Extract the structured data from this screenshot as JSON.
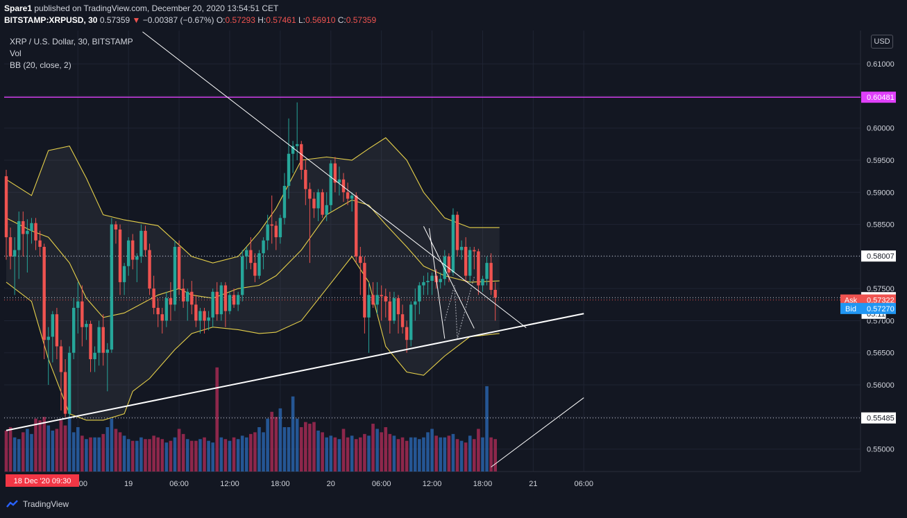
{
  "header": {
    "publisher": "Spare1",
    "published_text": " published on TradingView.com, December 20, 2020 13:54:51 CET",
    "symbol": "BITSTAMP:XRPUSD",
    "interval": ", 30 ",
    "last": "0.57359",
    "arrow": "▼",
    "change": " −0.00387 (−0.67%)",
    "o_label": " O:",
    "o": "0.57293",
    "h_label": " H:",
    "h": "0.57461",
    "l_label": " L:",
    "l": "0.56910",
    "c_label": " C:",
    "c": "0.57359"
  },
  "legend": {
    "title": "XRP / U.S. Dollar, 30, BITSTAMP",
    "vol": "Vol",
    "bb": "BB (20, close, 2)"
  },
  "currency_button": "USD",
  "footer": {
    "brand": "TradingView"
  },
  "colors": {
    "background": "#131722",
    "up": "#26a69a",
    "down": "#ef5350",
    "vol_up": "#2962a8",
    "vol_down": "#a32a52",
    "bb": "#e6d04a",
    "resistance": "#e040fb",
    "trend": "#ffffff",
    "ask": "#ef5350",
    "bid": "#2196f3"
  },
  "chart_data": {
    "type": "candlestick",
    "symbol": "XRPUSD",
    "interval_minutes": 30,
    "ylim": [
      0.5465,
      0.6152
    ],
    "y_ticks": [
      "0.61000",
      "0.60500",
      "0.60000",
      "0.59500",
      "0.59000",
      "0.58500",
      "0.58000",
      "0.57500",
      "0.57000",
      "0.56500",
      "0.56000",
      "0.55500",
      "0.55000"
    ],
    "y_tick_values": [
      0.61,
      0.605,
      0.6,
      0.595,
      0.59,
      0.585,
      0.58,
      0.575,
      0.57,
      0.565,
      0.56,
      0.555,
      0.55
    ],
    "x_ticks": [
      "18:00",
      "19",
      "06:00",
      "12:00",
      "18:00",
      "20",
      "06:00",
      "12:00",
      "18:00",
      "21",
      "06:00"
    ],
    "x_tick_times": [
      "2020-12-18 18:00",
      "2020-12-19 00:00",
      "2020-12-19 06:00",
      "2020-12-19 12:00",
      "2020-12-19 18:00",
      "2020-12-20 00:00",
      "2020-12-20 06:00",
      "2020-12-20 12:00",
      "2020-12-20 18:00",
      "2020-12-21 00:00",
      "2020-12-21 06:00"
    ],
    "first_bar_time": "2020-12-18 09:30",
    "time_cursor_label": "18 Dec '20   09:30",
    "grid": true,
    "price_labels": [
      {
        "text": "0.60481",
        "value": 0.60481,
        "bg": "#e040fb",
        "fg": "#ffffff"
      },
      {
        "text": "0.58007",
        "value": 0.58007,
        "bg": "#ffffff",
        "fg": "#131722"
      },
      {
        "text": "0.57359",
        "value": 0.57359,
        "bg": "#ffffff",
        "fg": "#131722"
      },
      {
        "text": "05:11",
        "value": 0.5711,
        "bg": "#ffffff",
        "fg": "#131722"
      },
      {
        "text": "0.55485",
        "value": 0.55485,
        "bg": "#ffffff",
        "fg": "#131722"
      }
    ],
    "ask": {
      "label": "Ask",
      "value": 0.57322,
      "text": "0.57322"
    },
    "bid": {
      "label": "Bid",
      "value": 0.5727,
      "text": "0.57270"
    },
    "ohlc": [
      [
        0.5925,
        0.5935,
        0.5795,
        0.583
      ],
      [
        0.583,
        0.5845,
        0.578,
        0.58
      ],
      [
        0.58,
        0.583,
        0.574,
        0.581
      ],
      [
        0.581,
        0.587,
        0.5765,
        0.5855
      ],
      [
        0.5855,
        0.587,
        0.58,
        0.5835
      ],
      [
        0.5835,
        0.5858,
        0.5775,
        0.584
      ],
      [
        0.584,
        0.586,
        0.582,
        0.5852
      ],
      [
        0.5852,
        0.586,
        0.581,
        0.5825
      ],
      [
        0.5825,
        0.584,
        0.58,
        0.5815
      ],
      [
        0.5815,
        0.582,
        0.564,
        0.567
      ],
      [
        0.567,
        0.569,
        0.56,
        0.5675
      ],
      [
        0.5675,
        0.5715,
        0.5635,
        0.571
      ],
      [
        0.571,
        0.572,
        0.564,
        0.566
      ],
      [
        0.566,
        0.567,
        0.556,
        0.562
      ],
      [
        0.562,
        0.564,
        0.555,
        0.5555
      ],
      [
        0.5555,
        0.566,
        0.5548,
        0.565
      ],
      [
        0.565,
        0.5735,
        0.564,
        0.572
      ],
      [
        0.572,
        0.576,
        0.568,
        0.573
      ],
      [
        0.573,
        0.5755,
        0.566,
        0.569
      ],
      [
        0.569,
        0.57,
        0.567,
        0.5695
      ],
      [
        0.5695,
        0.57,
        0.562,
        0.564
      ],
      [
        0.564,
        0.566,
        0.562,
        0.565
      ],
      [
        0.565,
        0.57,
        0.563,
        0.569
      ],
      [
        0.569,
        0.571,
        0.563,
        0.565
      ],
      [
        0.565,
        0.5665,
        0.559,
        0.5655
      ],
      [
        0.5655,
        0.586,
        0.565,
        0.585
      ],
      [
        0.585,
        0.5855,
        0.582,
        0.5842
      ],
      [
        0.5842,
        0.585,
        0.574,
        0.576
      ],
      [
        0.576,
        0.579,
        0.574,
        0.5785
      ],
      [
        0.5785,
        0.583,
        0.577,
        0.5825
      ],
      [
        0.5825,
        0.5835,
        0.578,
        0.5795
      ],
      [
        0.5795,
        0.5805,
        0.576,
        0.58
      ],
      [
        0.58,
        0.585,
        0.579,
        0.584
      ],
      [
        0.584,
        0.5848,
        0.58,
        0.581
      ],
      [
        0.581,
        0.582,
        0.574,
        0.575
      ],
      [
        0.575,
        0.577,
        0.571,
        0.572
      ],
      [
        0.572,
        0.5735,
        0.569,
        0.571
      ],
      [
        0.571,
        0.572,
        0.568,
        0.57
      ],
      [
        0.57,
        0.5745,
        0.569,
        0.5735
      ],
      [
        0.5735,
        0.576,
        0.57,
        0.5725
      ],
      [
        0.5725,
        0.5825,
        0.5715,
        0.5815
      ],
      [
        0.5815,
        0.5825,
        0.574,
        0.575
      ],
      [
        0.575,
        0.5765,
        0.572,
        0.573
      ],
      [
        0.573,
        0.575,
        0.57,
        0.5745
      ],
      [
        0.5745,
        0.5762,
        0.571,
        0.5725
      ],
      [
        0.5725,
        0.574,
        0.569,
        0.57
      ],
      [
        0.57,
        0.572,
        0.568,
        0.5715
      ],
      [
        0.5715,
        0.572,
        0.568,
        0.57
      ],
      [
        0.57,
        0.5715,
        0.5685,
        0.5705
      ],
      [
        0.5705,
        0.575,
        0.569,
        0.5745
      ],
      [
        0.5745,
        0.576,
        0.57,
        0.571
      ],
      [
        0.571,
        0.576,
        0.57,
        0.5755
      ],
      [
        0.5755,
        0.576,
        0.569,
        0.5715
      ],
      [
        0.5715,
        0.5745,
        0.571,
        0.574
      ],
      [
        0.574,
        0.575,
        0.572,
        0.5725
      ],
      [
        0.5725,
        0.5745,
        0.5715,
        0.574
      ],
      [
        0.574,
        0.581,
        0.573,
        0.58
      ],
      [
        0.58,
        0.5815,
        0.578,
        0.581
      ],
      [
        0.581,
        0.583,
        0.578,
        0.579
      ],
      [
        0.579,
        0.5805,
        0.576,
        0.577
      ],
      [
        0.577,
        0.581,
        0.5765,
        0.5805
      ],
      [
        0.5805,
        0.583,
        0.578,
        0.5825
      ],
      [
        0.5825,
        0.5865,
        0.581,
        0.585
      ],
      [
        0.585,
        0.5895,
        0.582,
        0.5848
      ],
      [
        0.5848,
        0.5855,
        0.581,
        0.583
      ],
      [
        0.583,
        0.5865,
        0.582,
        0.586
      ],
      [
        0.586,
        0.593,
        0.585,
        0.591
      ],
      [
        0.591,
        0.6015,
        0.589,
        0.596
      ],
      [
        0.596,
        0.598,
        0.593,
        0.5972
      ],
      [
        0.5972,
        0.604,
        0.595,
        0.5975
      ],
      [
        0.5975,
        0.598,
        0.592,
        0.5935
      ],
      [
        0.5935,
        0.595,
        0.588,
        0.5905
      ],
      [
        0.5905,
        0.5915,
        0.579,
        0.589
      ],
      [
        0.589,
        0.59,
        0.586,
        0.5875
      ],
      [
        0.5875,
        0.5905,
        0.5855,
        0.59
      ],
      [
        0.59,
        0.5905,
        0.586,
        0.5865
      ],
      [
        0.5865,
        0.59,
        0.5855,
        0.588
      ],
      [
        0.588,
        0.595,
        0.587,
        0.5945
      ],
      [
        0.5945,
        0.5955,
        0.59,
        0.5915
      ],
      [
        0.5915,
        0.594,
        0.5895,
        0.592
      ],
      [
        0.592,
        0.593,
        0.5885,
        0.59
      ],
      [
        0.59,
        0.5915,
        0.588,
        0.589
      ],
      [
        0.589,
        0.59,
        0.587,
        0.5895
      ],
      [
        0.5895,
        0.59,
        0.579,
        0.58
      ],
      [
        0.58,
        0.5815,
        0.574,
        0.579
      ],
      [
        0.579,
        0.58,
        0.568,
        0.5705
      ],
      [
        0.5705,
        0.576,
        0.565,
        0.574
      ],
      [
        0.574,
        0.576,
        0.572,
        0.5725
      ],
      [
        0.5725,
        0.576,
        0.571,
        0.574
      ],
      [
        0.574,
        0.5755,
        0.57,
        0.5738
      ],
      [
        0.5738,
        0.575,
        0.5705,
        0.573
      ],
      [
        0.573,
        0.5745,
        0.568,
        0.57
      ],
      [
        0.57,
        0.5745,
        0.5695,
        0.5735
      ],
      [
        0.5735,
        0.574,
        0.568,
        0.571
      ],
      [
        0.571,
        0.5725,
        0.568,
        0.569
      ],
      [
        0.569,
        0.57,
        0.565,
        0.567
      ],
      [
        0.567,
        0.573,
        0.566,
        0.5725
      ],
      [
        0.5725,
        0.575,
        0.57,
        0.573
      ],
      [
        0.573,
        0.576,
        0.571,
        0.5755
      ],
      [
        0.5755,
        0.577,
        0.574,
        0.576
      ],
      [
        0.576,
        0.5775,
        0.574,
        0.5762
      ],
      [
        0.5762,
        0.5775,
        0.574,
        0.577
      ],
      [
        0.577,
        0.578,
        0.575,
        0.576
      ],
      [
        0.576,
        0.5775,
        0.575,
        0.5765
      ],
      [
        0.5765,
        0.581,
        0.5755,
        0.58
      ],
      [
        0.58,
        0.5805,
        0.576,
        0.5775
      ],
      [
        0.5775,
        0.5875,
        0.577,
        0.5865
      ],
      [
        0.5865,
        0.587,
        0.58,
        0.581
      ],
      [
        0.581,
        0.5825,
        0.5795,
        0.5815
      ],
      [
        0.5815,
        0.583,
        0.576,
        0.577
      ],
      [
        0.577,
        0.5815,
        0.576,
        0.581
      ],
      [
        0.581,
        0.5815,
        0.578,
        0.5808
      ],
      [
        0.5808,
        0.5812,
        0.574,
        0.5755
      ],
      [
        0.5755,
        0.577,
        0.5745,
        0.5765
      ],
      [
        0.5765,
        0.58,
        0.5755,
        0.579
      ],
      [
        0.579,
        0.5805,
        0.574,
        0.5748
      ],
      [
        0.5748,
        0.576,
        0.57,
        0.5736
      ]
    ],
    "volume": [
      48,
      52,
      40,
      38,
      46,
      50,
      44,
      62,
      60,
      64,
      54,
      48,
      50,
      60,
      54,
      64,
      46,
      52,
      42,
      38,
      40,
      40,
      40,
      44,
      52,
      62,
      50,
      46,
      42,
      38,
      36,
      36,
      40,
      38,
      38,
      42,
      40,
      38,
      34,
      36,
      40,
      50,
      44,
      38,
      36,
      36,
      38,
      40,
      36,
      34,
      122,
      40,
      38,
      36,
      40,
      38,
      42,
      40,
      44,
      46,
      52,
      46,
      62,
      70,
      64,
      74,
      52,
      52,
      88,
      62,
      52,
      58,
      56,
      58,
      48,
      46,
      40,
      42,
      40,
      38,
      50,
      40,
      42,
      38,
      40,
      44,
      42,
      56,
      50,
      46,
      52,
      44,
      42,
      38,
      40,
      36,
      40,
      40,
      38,
      40,
      46,
      50,
      42,
      40,
      40,
      42,
      44,
      38,
      36,
      34,
      42,
      38,
      50,
      40,
      100,
      40,
      38,
      40,
      42,
      38,
      40
    ],
    "bollinger": {
      "period": 20,
      "source": "close",
      "stddev": 2,
      "upper": [
        [
          0,
          0.592
        ],
        [
          6,
          0.5895
        ],
        [
          10,
          0.5965
        ],
        [
          15,
          0.5972
        ],
        [
          19,
          0.5922
        ],
        [
          23,
          0.5865
        ],
        [
          28,
          0.5857
        ],
        [
          36,
          0.5848
        ],
        [
          41,
          0.5818
        ],
        [
          44,
          0.58
        ],
        [
          49,
          0.579
        ],
        [
          55,
          0.58
        ],
        [
          60,
          0.5838
        ],
        [
          64,
          0.5875
        ],
        [
          70,
          0.595
        ],
        [
          76,
          0.5955
        ],
        [
          82,
          0.595
        ],
        [
          86,
          0.5968
        ],
        [
          90,
          0.5985
        ],
        [
          95,
          0.595
        ],
        [
          99,
          0.59
        ],
        [
          104,
          0.586
        ],
        [
          110,
          0.5845
        ],
        [
          117,
          0.5845
        ]
      ],
      "middle": [
        [
          0,
          0.586
        ],
        [
          6,
          0.584
        ],
        [
          10,
          0.583
        ],
        [
          15,
          0.579
        ],
        [
          19,
          0.5735
        ],
        [
          23,
          0.5705
        ],
        [
          28,
          0.5712
        ],
        [
          36,
          0.574
        ],
        [
          41,
          0.575
        ],
        [
          44,
          0.574
        ],
        [
          49,
          0.5735
        ],
        [
          55,
          0.575
        ],
        [
          60,
          0.5755
        ],
        [
          64,
          0.577
        ],
        [
          70,
          0.581
        ],
        [
          76,
          0.5865
        ],
        [
          82,
          0.5888
        ],
        [
          86,
          0.588
        ],
        [
          90,
          0.585
        ],
        [
          95,
          0.5815
        ],
        [
          99,
          0.5785
        ],
        [
          104,
          0.577
        ],
        [
          110,
          0.576
        ],
        [
          117,
          0.5762
        ]
      ],
      "lower": [
        [
          0,
          0.576
        ],
        [
          6,
          0.573
        ],
        [
          10,
          0.564
        ],
        [
          15,
          0.5555
        ],
        [
          19,
          0.5545
        ],
        [
          23,
          0.5545
        ],
        [
          28,
          0.5555
        ],
        [
          30,
          0.559
        ],
        [
          34,
          0.561
        ],
        [
          40,
          0.5655
        ],
        [
          44,
          0.568
        ],
        [
          49,
          0.569
        ],
        [
          55,
          0.5686
        ],
        [
          60,
          0.568
        ],
        [
          64,
          0.5682
        ],
        [
          70,
          0.57
        ],
        [
          76,
          0.575
        ],
        [
          82,
          0.58
        ],
        [
          86,
          0.576
        ],
        [
          90,
          0.566
        ],
        [
          95,
          0.562
        ],
        [
          99,
          0.5615
        ],
        [
          104,
          0.5645
        ],
        [
          110,
          0.5675
        ],
        [
          117,
          0.568
        ]
      ]
    },
    "drawings": {
      "resistance_level": 0.60481,
      "dotted_levels": [
        0.58007,
        0.57359,
        0.57322,
        0.55485
      ],
      "lines": [
        {
          "from": [
            "2020-12-18 09:30",
            0.5529
          ],
          "to": [
            "2020-12-21 06:00",
            0.5711
          ],
          "style": "thick"
        },
        {
          "from": [
            "2020-12-19 01:40",
            0.615
          ],
          "to": [
            "2020-12-20 23:10",
            0.5689
          ],
          "style": "thin"
        },
        {
          "from": [
            "2020-12-20 11:00",
            0.5847
          ],
          "to": [
            "2020-12-20 17:00",
            0.5688
          ],
          "style": "thin"
        },
        {
          "from": [
            "2020-12-20 11:40",
            0.5844
          ],
          "to": [
            "2020-12-20 13:30",
            0.5672
          ],
          "style": "thin"
        },
        {
          "from": [
            "2020-12-20 19:00",
            0.5472
          ],
          "to": [
            "2020-12-21 06:00",
            0.558
          ],
          "style": "thin"
        }
      ],
      "dotted_path": [
        [
          "2020-12-20 13:30",
          0.57
        ],
        [
          "2020-12-20 14:40",
          0.5755
        ],
        [
          "2020-12-20 15:00",
          0.5672
        ],
        [
          "2020-12-20 17:00",
          0.5768
        ]
      ]
    }
  }
}
